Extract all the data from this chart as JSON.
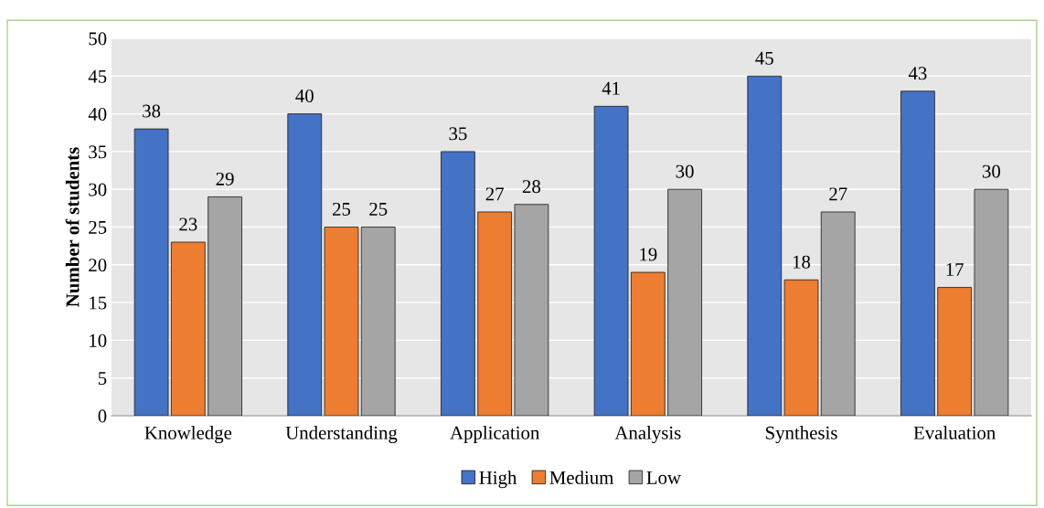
{
  "chart_data": {
    "type": "bar",
    "ylabel": "Number of students",
    "categories": [
      "Knowledge",
      "Understanding",
      "Application",
      "Analysis",
      "Synthesis",
      "Evaluation"
    ],
    "series": [
      {
        "name": "High",
        "color": "#4472c4",
        "values": [
          38,
          40,
          35,
          41,
          45,
          43
        ]
      },
      {
        "name": "Medium",
        "color": "#ed7d31",
        "values": [
          23,
          25,
          27,
          19,
          18,
          17
        ]
      },
      {
        "name": "Low",
        "color": "#a5a5a5",
        "values": [
          29,
          25,
          28,
          30,
          27,
          30
        ]
      }
    ],
    "ylim": [
      0,
      50
    ],
    "yticks": [
      0,
      5,
      10,
      15,
      20,
      25,
      30,
      35,
      40,
      45,
      50
    ],
    "grid": "y",
    "legend": "bottom",
    "data_labels": true
  }
}
